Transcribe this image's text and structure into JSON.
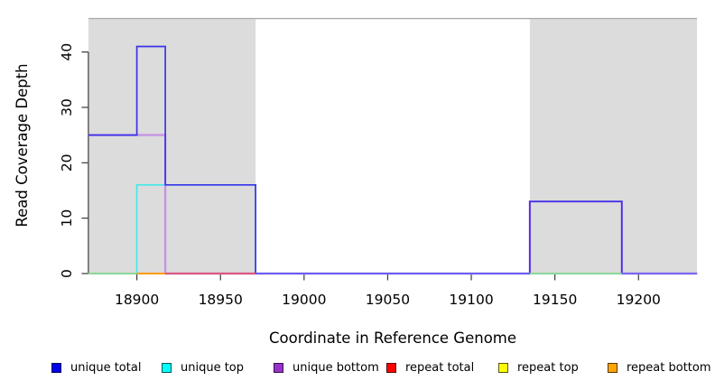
{
  "chart_data": {
    "type": "line",
    "subtype": "step-coverage-plot",
    "title": "",
    "xlabel": "Coordinate in Reference Genome",
    "ylabel": "Read Coverage Depth",
    "xlim": [
      18871,
      19235
    ],
    "ylim": [
      0,
      46
    ],
    "x_ticks": [
      18900,
      18950,
      19000,
      19050,
      19100,
      19150,
      19200
    ],
    "y_ticks": [
      0,
      10,
      20,
      30,
      40
    ],
    "grid": false,
    "legend_position": "bottom",
    "region_fill": "#DCDCDC",
    "region_border_color": "#A9A9A9",
    "axis_color": "#3a3a3a",
    "shaded_regions": [
      {
        "name": "repeat-region-left",
        "from": 18871,
        "to": 18971
      },
      {
        "name": "repeat-region-right",
        "from": 19135,
        "to": 19235
      }
    ],
    "series": [
      {
        "name": "unique total",
        "color": "#3A34E8",
        "legend_color": "#0000EE",
        "width": 1.7,
        "draw_order": 6,
        "steps": [
          [
            18871,
            25
          ],
          [
            18900,
            41
          ],
          [
            18917,
            16
          ],
          [
            18971,
            0
          ],
          [
            19135,
            13
          ],
          [
            19190,
            0
          ],
          [
            19235,
            null
          ]
        ]
      },
      {
        "name": "unique top",
        "color": "#45E8E8",
        "legend_color": "#00FFFF",
        "width": 1.7,
        "draw_order": 4,
        "steps": [
          [
            18871,
            0
          ],
          [
            18900,
            16
          ],
          [
            18971,
            0
          ],
          [
            19235,
            null
          ]
        ]
      },
      {
        "name": "unique bottom",
        "color": "#C794E2",
        "legend_color": "#9932CC",
        "width": 2.4,
        "draw_order": 5,
        "steps": [
          [
            18871,
            25
          ],
          [
            18917,
            0
          ],
          [
            19135,
            13
          ],
          [
            19190,
            0
          ],
          [
            19235,
            null
          ]
        ]
      },
      {
        "name": "repeat total",
        "color": "#E0506E",
        "legend_color": "#FF0000",
        "width": 1.7,
        "draw_order": 1,
        "steps": [
          [
            18871,
            0
          ],
          [
            19235,
            null
          ]
        ]
      },
      {
        "name": "repeat top",
        "color": "#F0F040",
        "legend_color": "#FFFF00",
        "width": 1.7,
        "draw_order": 2,
        "steps": [
          [
            18871,
            0
          ],
          [
            19235,
            null
          ]
        ]
      },
      {
        "name": "repeat bottom",
        "color": "#FF9900",
        "legend_color": "#FFA500",
        "width": 1.7,
        "draw_order": 3,
        "steps": [
          [
            18871,
            0
          ],
          [
            19235,
            null
          ]
        ]
      }
    ],
    "baseline_overlap_segments": [
      {
        "from": 18871,
        "to": 18900,
        "color": "#90D693"
      },
      {
        "from": 18900,
        "to": 18917,
        "color": "#FF9900"
      },
      {
        "from": 18917,
        "to": 18971,
        "color": "#E0506E"
      },
      {
        "from": 18971,
        "to": 19135,
        "color": "#6964F2"
      },
      {
        "from": 19135,
        "to": 19190,
        "color": "#90D693"
      },
      {
        "from": 19190,
        "to": 19235,
        "color": "#7A6CF0"
      }
    ],
    "legend": [
      {
        "label": "unique total",
        "color": "#0000EE"
      },
      {
        "label": "unique top",
        "color": "#00FFFF"
      },
      {
        "label": "unique bottom",
        "color": "#9932CC"
      },
      {
        "label": "repeat total",
        "color": "#FF0000"
      },
      {
        "label": "repeat top",
        "color": "#FFFF00"
      },
      {
        "label": "repeat bottom",
        "color": "#FFA500"
      }
    ]
  }
}
